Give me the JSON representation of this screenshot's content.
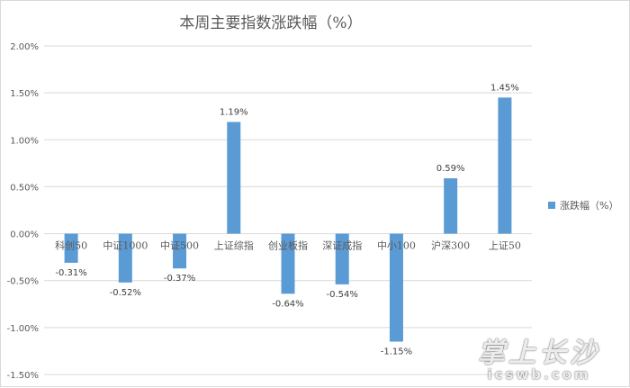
{
  "chart_data": {
    "type": "bar",
    "title": "本周主要指数涨跌幅（%）",
    "categories": [
      "科创50",
      "中证1000",
      "中证500",
      "上证综指",
      "创业板指",
      "深证成指",
      "中小100",
      "沪深300",
      "上证50"
    ],
    "series": [
      {
        "name": "涨跌幅（%）",
        "values": [
          -0.31,
          -0.52,
          -0.37,
          1.19,
          -0.64,
          -0.54,
          -1.15,
          0.59,
          1.45
        ],
        "labels": [
          "-0.31%",
          "-0.52%",
          "-0.37%",
          "1.19%",
          "-0.64%",
          "-0.54%",
          "-1.15%",
          "0.59%",
          "1.45%"
        ]
      }
    ],
    "ylim": [
      -1.5,
      2.0
    ],
    "yticks": [
      2.0,
      1.5,
      1.0,
      0.5,
      0.0,
      -0.5,
      -1.0,
      -1.5
    ],
    "ytick_labels": [
      "2.00%",
      "1.50%",
      "1.00%",
      "0.50%",
      "0.00%",
      "-0.50%",
      "-1.00%",
      "-1.50%"
    ],
    "grid": true,
    "legend_position": "right",
    "bar_color": "#5b9bd5"
  },
  "watermark": {
    "main": "掌上长沙",
    "sub": "icswb.com"
  }
}
